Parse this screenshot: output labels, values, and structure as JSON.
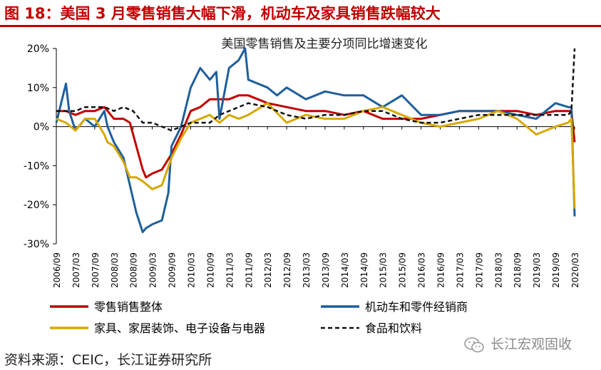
{
  "figure": {
    "title": "图 18：美国 3 月零售销售大幅下滑，机动车及家具销售跌幅较大",
    "source": "资料来源：CEIC，长江证券研究所",
    "watermark": "长江宏观固收",
    "watermark_icon": "wechat-icon",
    "accent_color": "#c00000"
  },
  "chart_data": {
    "type": "line",
    "title": "美国零售销售及主要分项同比增速变化",
    "xlabel": "",
    "ylabel": "",
    "ylim": [
      -30,
      20
    ],
    "yticks": [
      -30,
      -20,
      -10,
      0,
      10,
      20
    ],
    "ytick_labels": [
      "-30%",
      "-20%",
      "-10%",
      "0%",
      "10%",
      "20%"
    ],
    "x_range": [
      "2006/09",
      "2020/03"
    ],
    "xtick_labels": [
      "2006/09",
      "2007/03",
      "2007/09",
      "2008/03",
      "2008/09",
      "2009/03",
      "2009/09",
      "2010/03",
      "2010/09",
      "2011/03",
      "2011/09",
      "2012/03",
      "2012/09",
      "2013/03",
      "2013/09",
      "2014/03",
      "2014/09",
      "2015/03",
      "2015/09",
      "2016/03",
      "2016/09",
      "2017/03",
      "2017/09",
      "2018/03",
      "2018/09",
      "2019/03",
      "2019/09",
      "2020/03"
    ],
    "grid": false,
    "legend_position": "bottom",
    "series": [
      {
        "name": "零售销售整体",
        "color": "#c00000",
        "dash": "solid",
        "points": [
          [
            "2006/09",
            4
          ],
          [
            "2006/12",
            4
          ],
          [
            "2007/03",
            3
          ],
          [
            "2007/06",
            4
          ],
          [
            "2007/09",
            4
          ],
          [
            "2007/12",
            5
          ],
          [
            "2008/03",
            2
          ],
          [
            "2008/06",
            2
          ],
          [
            "2008/08",
            1
          ],
          [
            "2008/10",
            -5
          ],
          [
            "2008/12",
            -11
          ],
          [
            "2009/01",
            -13
          ],
          [
            "2009/03",
            -12
          ],
          [
            "2009/06",
            -11
          ],
          [
            "2009/09",
            -7
          ],
          [
            "2009/12",
            -2
          ],
          [
            "2010/03",
            4
          ],
          [
            "2010/06",
            5
          ],
          [
            "2010/09",
            7
          ],
          [
            "2010/12",
            7
          ],
          [
            "2011/03",
            7
          ],
          [
            "2011/06",
            8
          ],
          [
            "2011/09",
            8
          ],
          [
            "2012/03",
            6
          ],
          [
            "2012/09",
            5
          ],
          [
            "2013/03",
            4
          ],
          [
            "2013/09",
            4
          ],
          [
            "2014/03",
            3
          ],
          [
            "2014/09",
            4
          ],
          [
            "2015/03",
            2
          ],
          [
            "2015/09",
            2
          ],
          [
            "2016/03",
            2
          ],
          [
            "2016/09",
            3
          ],
          [
            "2017/03",
            4
          ],
          [
            "2017/09",
            4
          ],
          [
            "2018/03",
            4
          ],
          [
            "2018/09",
            4
          ],
          [
            "2019/03",
            3
          ],
          [
            "2019/09",
            4
          ],
          [
            "2020/01",
            4
          ],
          [
            "2020/02",
            4
          ],
          [
            "2020/03",
            -4
          ]
        ]
      },
      {
        "name": "机动车和零件经销商",
        "color": "#1f5f9b",
        "dash": "solid",
        "points": [
          [
            "2006/09",
            1
          ],
          [
            "2006/12",
            11
          ],
          [
            "2007/01",
            4
          ],
          [
            "2007/03",
            -1
          ],
          [
            "2007/06",
            2
          ],
          [
            "2007/09",
            0
          ],
          [
            "2007/12",
            4
          ],
          [
            "2008/01",
            0
          ],
          [
            "2008/03",
            -4
          ],
          [
            "2008/06",
            -8
          ],
          [
            "2008/08",
            -15
          ],
          [
            "2008/10",
            -22
          ],
          [
            "2008/12",
            -27
          ],
          [
            "2009/01",
            -26
          ],
          [
            "2009/03",
            -25
          ],
          [
            "2009/06",
            -24
          ],
          [
            "2009/08",
            -17
          ],
          [
            "2009/09",
            -5
          ],
          [
            "2009/12",
            0
          ],
          [
            "2010/03",
            10
          ],
          [
            "2010/06",
            15
          ],
          [
            "2010/09",
            12
          ],
          [
            "2010/11",
            14
          ],
          [
            "2010/12",
            2
          ],
          [
            "2011/03",
            15
          ],
          [
            "2011/06",
            17
          ],
          [
            "2011/08",
            20
          ],
          [
            "2011/09",
            12
          ],
          [
            "2012/03",
            10
          ],
          [
            "2012/06",
            8
          ],
          [
            "2012/09",
            10
          ],
          [
            "2013/03",
            7
          ],
          [
            "2013/09",
            9
          ],
          [
            "2014/03",
            8
          ],
          [
            "2014/09",
            8
          ],
          [
            "2015/03",
            5
          ],
          [
            "2015/09",
            8
          ],
          [
            "2016/03",
            3
          ],
          [
            "2016/09",
            3
          ],
          [
            "2017/03",
            4
          ],
          [
            "2017/09",
            4
          ],
          [
            "2018/03",
            4
          ],
          [
            "2018/09",
            3
          ],
          [
            "2019/03",
            2
          ],
          [
            "2019/09",
            6
          ],
          [
            "2020/01",
            5
          ],
          [
            "2020/02",
            5
          ],
          [
            "2020/03",
            -23
          ]
        ]
      },
      {
        "name": "家具、家居装饰、电子设备与电器",
        "color": "#d6a800",
        "dash": "solid",
        "points": [
          [
            "2006/09",
            2
          ],
          [
            "2006/12",
            1
          ],
          [
            "2007/03",
            -1
          ],
          [
            "2007/06",
            2
          ],
          [
            "2007/09",
            2
          ],
          [
            "2007/12",
            -2
          ],
          [
            "2008/01",
            -4
          ],
          [
            "2008/03",
            -5
          ],
          [
            "2008/06",
            -9
          ],
          [
            "2008/08",
            -13
          ],
          [
            "2008/10",
            -13
          ],
          [
            "2008/12",
            -14
          ],
          [
            "2009/03",
            -16
          ],
          [
            "2009/06",
            -15
          ],
          [
            "2009/09",
            -8
          ],
          [
            "2009/12",
            -3
          ],
          [
            "2010/03",
            1
          ],
          [
            "2010/06",
            2
          ],
          [
            "2010/09",
            3
          ],
          [
            "2010/12",
            1
          ],
          [
            "2011/03",
            3
          ],
          [
            "2011/06",
            2
          ],
          [
            "2011/09",
            3
          ],
          [
            "2012/03",
            6
          ],
          [
            "2012/09",
            1
          ],
          [
            "2013/03",
            3
          ],
          [
            "2013/09",
            2
          ],
          [
            "2014/03",
            2
          ],
          [
            "2014/09",
            4
          ],
          [
            "2015/03",
            5
          ],
          [
            "2015/09",
            3
          ],
          [
            "2016/03",
            1
          ],
          [
            "2016/09",
            0
          ],
          [
            "2017/03",
            1
          ],
          [
            "2017/09",
            2
          ],
          [
            "2018/03",
            4
          ],
          [
            "2018/09",
            2
          ],
          [
            "2019/03",
            -2
          ],
          [
            "2019/09",
            0
          ],
          [
            "2020/01",
            1
          ],
          [
            "2020/02",
            2
          ],
          [
            "2020/03",
            -21
          ]
        ]
      },
      {
        "name": "食品和饮料",
        "color": "#111111",
        "dash": "dashed",
        "points": [
          [
            "2006/09",
            4
          ],
          [
            "2006/12",
            4
          ],
          [
            "2007/03",
            4
          ],
          [
            "2007/06",
            5
          ],
          [
            "2007/09",
            5
          ],
          [
            "2007/12",
            5
          ],
          [
            "2008/03",
            4
          ],
          [
            "2008/06",
            5
          ],
          [
            "2008/09",
            4
          ],
          [
            "2008/12",
            1
          ],
          [
            "2009/03",
            1
          ],
          [
            "2009/06",
            0
          ],
          [
            "2009/09",
            -1
          ],
          [
            "2009/12",
            0
          ],
          [
            "2010/03",
            1
          ],
          [
            "2010/06",
            1
          ],
          [
            "2010/09",
            1
          ],
          [
            "2010/12",
            3
          ],
          [
            "2011/03",
            4
          ],
          [
            "2011/06",
            5
          ],
          [
            "2011/09",
            6
          ],
          [
            "2012/03",
            5
          ],
          [
            "2012/09",
            3
          ],
          [
            "2013/03",
            2
          ],
          [
            "2013/09",
            3
          ],
          [
            "2014/03",
            3
          ],
          [
            "2014/09",
            4
          ],
          [
            "2015/03",
            4
          ],
          [
            "2015/09",
            2
          ],
          [
            "2016/03",
            1
          ],
          [
            "2016/09",
            1
          ],
          [
            "2017/03",
            2
          ],
          [
            "2017/09",
            3
          ],
          [
            "2018/03",
            3
          ],
          [
            "2018/09",
            3
          ],
          [
            "2019/03",
            3
          ],
          [
            "2019/09",
            3
          ],
          [
            "2020/01",
            3
          ],
          [
            "2020/02",
            4
          ],
          [
            "2020/03",
            20
          ]
        ]
      }
    ]
  }
}
